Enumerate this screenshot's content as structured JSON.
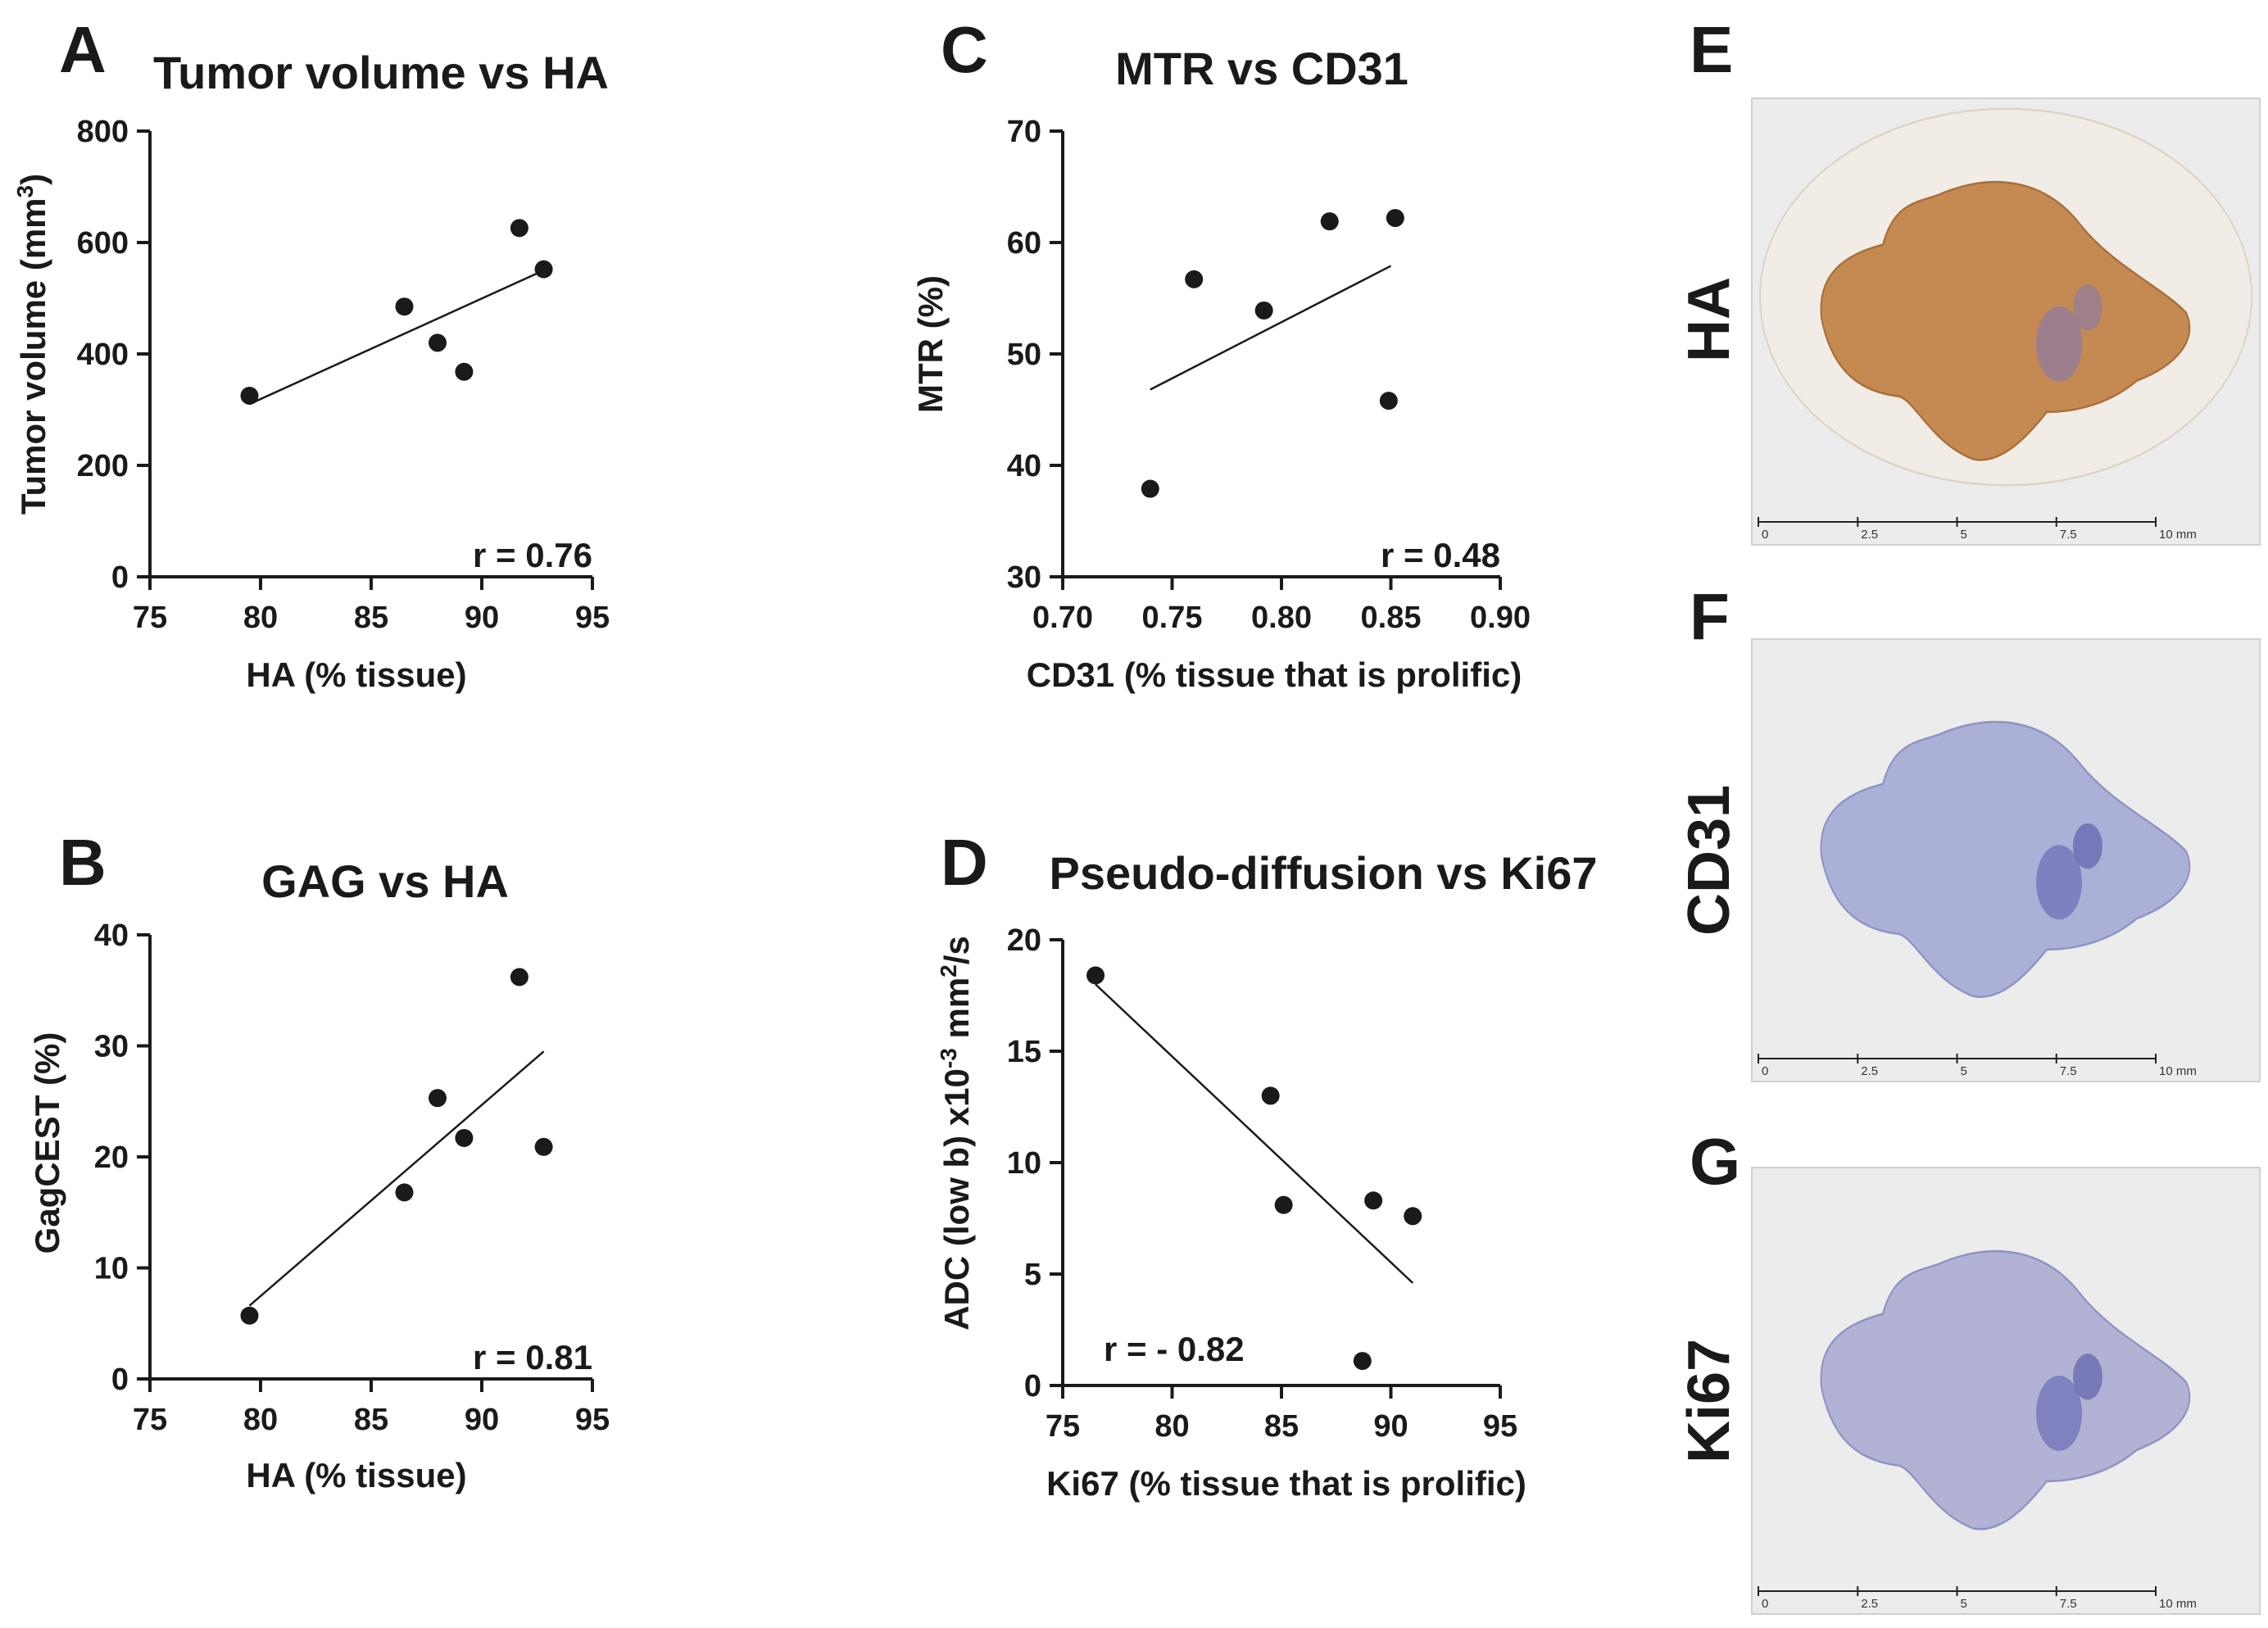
{
  "chart_data": [
    {
      "panel": "A",
      "type": "scatter",
      "title": "Tumor volume vs HA",
      "xlabel": "HA (% tissue)",
      "ylabel_main": "Tumor volume (mm",
      "ylabel_sup": "3",
      "ylabel_end": ")",
      "xlim": [
        75,
        95
      ],
      "ylim": [
        0,
        800
      ],
      "xticks": [
        75,
        80,
        85,
        90,
        95
      ],
      "yticks": [
        0,
        200,
        400,
        600,
        800
      ],
      "x": [
        79.5,
        86.5,
        88.0,
        89.2,
        91.7,
        92.8
      ],
      "y": [
        325,
        485,
        420,
        368,
        626,
        552
      ],
      "fit": [
        [
          79.5,
          310
        ],
        [
          92.8,
          550
        ]
      ],
      "annotation": "r = 0.76",
      "annotation_pos": "bottom-right"
    },
    {
      "panel": "B",
      "type": "scatter",
      "title": "GAG vs HA",
      "xlabel": "HA (% tissue)",
      "ylabel_main": "GagCEST (%)",
      "ylabel_sup": "",
      "ylabel_end": "",
      "xlim": [
        75,
        95
      ],
      "ylim": [
        0,
        40
      ],
      "xticks": [
        75,
        80,
        85,
        90,
        95
      ],
      "yticks": [
        0,
        10,
        20,
        30,
        40
      ],
      "x": [
        79.5,
        86.5,
        88.0,
        89.2,
        91.7,
        92.8
      ],
      "y": [
        5.7,
        16.8,
        25.3,
        21.7,
        36.2,
        20.9
      ],
      "fit": [
        [
          79.5,
          6.6
        ],
        [
          92.8,
          29.5
        ]
      ],
      "annotation": "r = 0.81",
      "annotation_pos": "bottom-right"
    },
    {
      "panel": "C",
      "type": "scatter",
      "title": "MTR vs CD31",
      "xlabel": "CD31 (% tissue that is prolific)",
      "ylabel_main": "MTR (%)",
      "ylabel_sup": "",
      "ylabel_end": "",
      "xlim": [
        0.7,
        0.9
      ],
      "ylim": [
        30,
        70
      ],
      "xticks": [
        "0.70",
        "0.75",
        "0.80",
        "0.85",
        "0.90"
      ],
      "yticks": [
        30,
        40,
        50,
        60,
        70
      ],
      "x": [
        0.74,
        0.76,
        0.792,
        0.822,
        0.849,
        0.852
      ],
      "y": [
        37.9,
        56.7,
        53.9,
        61.9,
        45.8,
        62.2
      ],
      "fit": [
        [
          0.74,
          46.8
        ],
        [
          0.85,
          57.9
        ]
      ],
      "annotation": "r = 0.48",
      "annotation_pos": "bottom-right"
    },
    {
      "panel": "D",
      "type": "scatter",
      "title": "Pseudo-diffusion vs Ki67",
      "xlabel": "Ki67 (% tissue that is prolific)",
      "ylabel_main": "ADC (low b) x10",
      "ylabel_sup": "-3",
      "ylabel_mid": " mm",
      "ylabel_sup2": "2",
      "ylabel_end": "/s",
      "xlim": [
        75,
        95
      ],
      "ylim": [
        0,
        20
      ],
      "xticks": [
        75,
        80,
        85,
        90,
        95
      ],
      "yticks": [
        0,
        5,
        10,
        15,
        20
      ],
      "x": [
        76.5,
        84.5,
        85.1,
        88.7,
        89.2,
        91.0
      ],
      "y": [
        18.4,
        13.0,
        8.1,
        1.1,
        8.3,
        7.6
      ],
      "fit": [
        [
          76.5,
          18.0
        ],
        [
          91.0,
          4.6
        ]
      ],
      "annotation": "r = - 0.82",
      "annotation_pos": "bottom-left"
    }
  ],
  "images": [
    {
      "panel": "E",
      "side_label": "HA",
      "stain_color": "#c58a52",
      "scale_ticks": [
        "0",
        "2.5",
        "5",
        "7.5",
        "10 mm"
      ]
    },
    {
      "panel": "F",
      "side_label": "CD31",
      "stain_color": "#aab0d6",
      "scale_ticks": [
        "0",
        "2.5",
        "5",
        "7.5",
        "10 mm"
      ]
    },
    {
      "panel": "G",
      "side_label": "Ki67",
      "stain_color": "#b2b2d4",
      "scale_ticks": [
        "0",
        "2.5",
        "5",
        "7.5",
        "10 mm"
      ]
    }
  ],
  "colors": {
    "ink": "#1a1a1a",
    "slide_bg": "#ececec"
  }
}
